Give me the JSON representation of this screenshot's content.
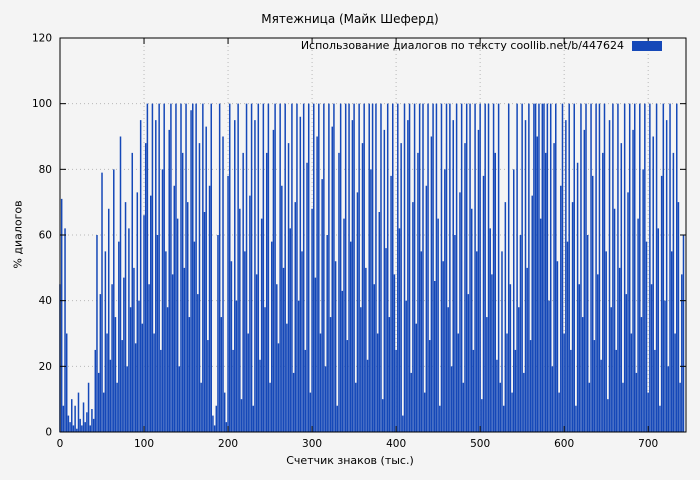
{
  "page": {
    "background": "#f4f4f4"
  },
  "chart_data": {
    "type": "bar",
    "style": "impulses",
    "title": "Мятежница (Майк Шеферд)",
    "legend": [
      "Использование диалогов по тексту  coollib.net/b/447624"
    ],
    "xlabel": "Счетчик знаков (тыс.)",
    "ylabel": "% диалогов",
    "xlim": [
      0,
      745
    ],
    "ylim": [
      0,
      120
    ],
    "xticks": [
      0,
      100,
      200,
      300,
      400,
      500,
      600,
      700
    ],
    "yticks": [
      0,
      20,
      40,
      60,
      80,
      100,
      120
    ],
    "grid": true,
    "color": "#1548b8",
    "x_start": 0,
    "x_step": 2,
    "values": [
      45,
      71,
      8,
      62,
      30,
      5,
      3,
      10,
      2,
      8,
      1,
      12,
      4,
      2,
      9,
      3,
      6,
      15,
      2,
      7,
      4,
      25,
      60,
      18,
      42,
      79,
      12,
      55,
      30,
      68,
      22,
      45,
      80,
      35,
      15,
      58,
      90,
      28,
      47,
      70,
      20,
      62,
      38,
      85,
      50,
      27,
      73,
      40,
      95,
      33,
      66,
      88,
      100,
      45,
      72,
      100,
      30,
      95,
      60,
      100,
      25,
      80,
      100,
      55,
      38,
      92,
      100,
      48,
      75,
      100,
      65,
      20,
      100,
      85,
      50,
      100,
      70,
      35,
      98,
      100,
      58,
      100,
      42,
      88,
      15,
      100,
      67,
      93,
      28,
      75,
      100,
      5,
      2,
      8,
      60,
      100,
      35,
      90,
      12,
      3,
      78,
      100,
      52,
      25,
      95,
      40,
      100,
      68,
      10,
      85,
      55,
      100,
      30,
      72,
      100,
      8,
      95,
      48,
      100,
      22,
      65,
      100,
      38,
      85,
      100,
      15,
      58,
      92,
      100,
      45,
      27,
      100,
      75,
      50,
      100,
      33,
      88,
      62,
      100,
      18,
      70,
      100,
      40,
      96,
      55,
      100,
      25,
      82,
      100,
      12,
      68,
      100,
      47,
      90,
      100,
      30,
      77,
      100,
      20,
      60,
      100,
      35,
      93,
      100,
      52,
      8,
      85,
      100,
      43,
      65,
      100,
      28,
      100,
      58,
      95,
      100,
      15,
      73,
      100,
      38,
      88,
      100,
      50,
      22,
      100,
      80,
      100,
      45,
      100,
      30,
      67,
      100,
      10,
      92,
      56,
      100,
      35,
      78,
      100,
      48,
      25,
      100,
      62,
      88,
      5,
      100,
      40,
      95,
      100,
      18,
      70,
      100,
      33,
      85,
      100,
      55,
      100,
      12,
      75,
      100,
      28,
      90,
      100,
      46,
      100,
      65,
      8,
      100,
      52,
      80,
      100,
      38,
      100,
      20,
      95,
      60,
      100,
      30,
      73,
      100,
      15,
      88,
      100,
      42,
      100,
      68,
      25,
      100,
      55,
      92,
      100,
      10,
      78,
      100,
      35,
      100,
      62,
      48,
      100,
      85,
      22,
      100,
      15,
      55,
      8,
      70,
      30,
      100,
      45,
      12,
      80,
      25,
      100,
      38,
      60,
      100,
      18,
      95,
      50,
      100,
      28,
      72,
      100,
      100,
      90,
      100,
      65,
      100,
      100,
      85,
      100,
      40,
      100,
      20,
      88,
      100,
      52,
      12,
      75,
      100,
      30,
      95,
      58,
      100,
      25,
      70,
      100,
      8,
      82,
      45,
      100,
      35,
      92,
      100,
      60,
      15,
      100,
      78,
      28,
      100,
      48,
      100,
      22,
      85,
      100,
      55,
      10,
      95,
      38,
      100,
      68,
      25,
      100,
      50,
      88,
      15,
      100,
      42,
      73,
      100,
      30,
      92,
      100,
      18,
      65,
      100,
      35,
      80,
      100,
      58,
      12,
      100,
      45,
      90,
      25,
      100,
      62,
      8,
      78,
      100,
      40,
      95,
      20,
      100,
      55,
      85,
      30,
      100,
      70,
      15,
      48,
      60
    ]
  }
}
